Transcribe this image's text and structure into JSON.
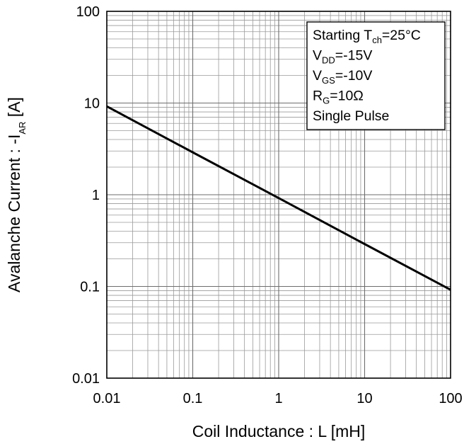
{
  "chart_data": {
    "type": "line",
    "title": "",
    "xlabel": "Coil Inductance : L [mH]",
    "ylabel": {
      "prefix": "Avalanche Current : -I",
      "sub": "AR",
      "suffix": " [A]"
    },
    "x_scale": "log",
    "y_scale": "log",
    "xlim": [
      0.01,
      100
    ],
    "ylim": [
      0.01,
      100
    ],
    "grid": true,
    "x_ticks": [
      {
        "value": 0.01,
        "label": "0.01"
      },
      {
        "value": 0.1,
        "label": "0.1"
      },
      {
        "value": 1,
        "label": "1"
      },
      {
        "value": 10,
        "label": "10"
      },
      {
        "value": 100,
        "label": "100"
      }
    ],
    "y_ticks": [
      {
        "value": 0.01,
        "label": "0.01"
      },
      {
        "value": 0.1,
        "label": "0.1"
      },
      {
        "value": 1,
        "label": "1"
      },
      {
        "value": 10,
        "label": "10"
      },
      {
        "value": 100,
        "label": "100"
      }
    ],
    "series": [
      {
        "x": [
          0.01,
          0.1,
          1,
          10,
          100
        ],
        "y": [
          9.2,
          2.9,
          0.92,
          0.29,
          0.092
        ],
        "color": "#000000"
      }
    ],
    "legend_box": {
      "position": "top-right",
      "lines": [
        {
          "main": "Starting T",
          "sub": "ch",
          "rest": "=25°C"
        },
        {
          "main": "V",
          "sub": "DD",
          "rest": "=-15V"
        },
        {
          "main": "V",
          "sub": "GS",
          "rest": "=-10V"
        },
        {
          "main": "R",
          "sub": "G",
          "rest": "=10Ω"
        },
        {
          "main": "Single Pulse",
          "sub": "",
          "rest": ""
        }
      ]
    }
  }
}
